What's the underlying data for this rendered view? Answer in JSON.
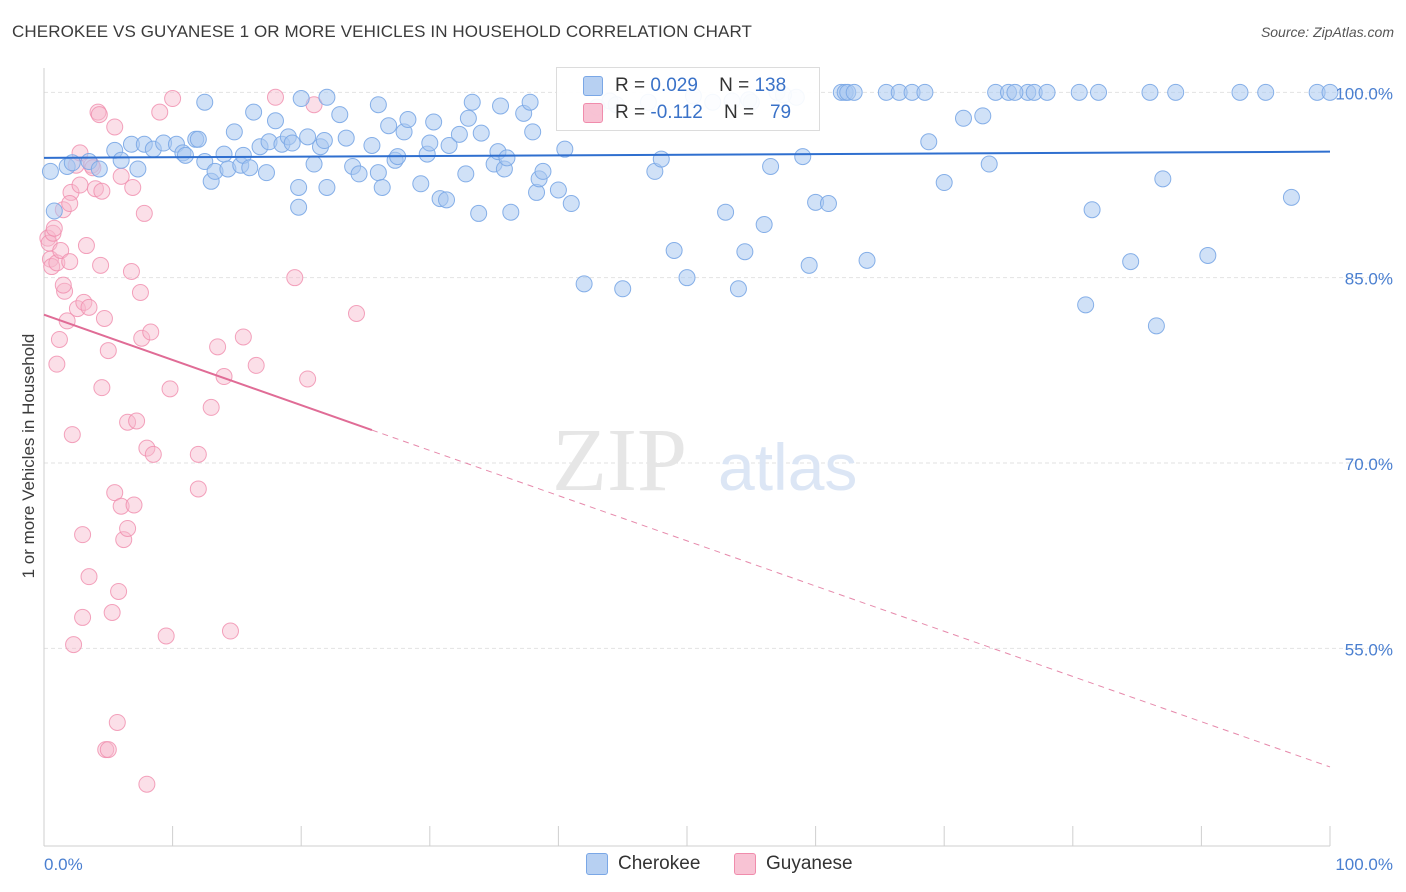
{
  "title": "CHEROKEE VS GUYANESE 1 OR MORE VEHICLES IN HOUSEHOLD CORRELATION CHART",
  "source": "Source: ZipAtlas.com",
  "watermark": {
    "zip": "ZIP",
    "atlas": "atlas"
  },
  "legend": {
    "rows": [
      {
        "r_label": "R =",
        "r_value": "0.029",
        "n_label": "N =",
        "n_value": "138",
        "color": "#aac8f0"
      },
      {
        "r_label": "R =",
        "r_value": "-0.112",
        "n_label": "N =",
        "n_value": "79",
        "color": "#f7b9cc"
      }
    ]
  },
  "bottom_legend": {
    "items": [
      {
        "label": "Cherokee",
        "color": "#aac8f0"
      },
      {
        "label": "Guyanese",
        "color": "#f7b9cc"
      }
    ]
  },
  "colors": {
    "blue_line": "#2f6fcf",
    "pink_line": "#e06c96",
    "blue_point": "#7aa7e6",
    "pink_point": "#f08cac",
    "tick_label": "#4a7fd0"
  },
  "chart_data": {
    "type": "scatter",
    "title": "CHEROKEE VS GUYANESE 1 OR MORE VEHICLES IN HOUSEHOLD CORRELATION CHART",
    "xlabel": "",
    "ylabel": "1 or more Vehicles in Household",
    "xlim": [
      0,
      100
    ],
    "ylim": [
      39,
      101
    ],
    "x_tick_labels": [
      "0.0%",
      "100.0%"
    ],
    "y_ticks": [
      55,
      70,
      85,
      100
    ],
    "y_tick_labels": [
      "55.0%",
      "70.0%",
      "85.0%",
      "100.0%"
    ],
    "grid": true,
    "legend_position": "top-center",
    "series": [
      {
        "name": "Cherokee",
        "color": "#7aa7e6",
        "trend": {
          "x": [
            0,
            100
          ],
          "y": [
            94.7,
            95.2
          ],
          "dashed_from": null
        },
        "points": [
          [
            0.5,
            93.6
          ],
          [
            0.8,
            90.4
          ],
          [
            1.8,
            94.0
          ],
          [
            2.2,
            94.3
          ],
          [
            3.5,
            94.4
          ],
          [
            4.3,
            93.8
          ],
          [
            5.5,
            95.3
          ],
          [
            6.0,
            94.5
          ],
          [
            6.8,
            95.8
          ],
          [
            7.3,
            93.8
          ],
          [
            7.8,
            95.8
          ],
          [
            8.5,
            95.4
          ],
          [
            9.3,
            95.9
          ],
          [
            10.3,
            95.8
          ],
          [
            10.8,
            95.1
          ],
          [
            11.0,
            94.9
          ],
          [
            11.8,
            96.2
          ],
          [
            12.0,
            96.2
          ],
          [
            12.5,
            94.4
          ],
          [
            13.0,
            92.8
          ],
          [
            13.3,
            93.6
          ],
          [
            14.0,
            95.0
          ],
          [
            14.3,
            93.8
          ],
          [
            14.8,
            96.8
          ],
          [
            15.3,
            94.1
          ],
          [
            15.5,
            94.9
          ],
          [
            16.0,
            93.9
          ],
          [
            16.3,
            98.4
          ],
          [
            16.8,
            95.6
          ],
          [
            17.3,
            93.5
          ],
          [
            17.5,
            96.0
          ],
          [
            18.0,
            97.7
          ],
          [
            18.5,
            95.8
          ],
          [
            19.0,
            96.4
          ],
          [
            19.3,
            95.9
          ],
          [
            19.8,
            92.3
          ],
          [
            19.8,
            90.7
          ],
          [
            20.5,
            96.4
          ],
          [
            21.0,
            94.2
          ],
          [
            21.5,
            95.6
          ],
          [
            21.8,
            96.1
          ],
          [
            22.0,
            92.3
          ],
          [
            23.0,
            98.2
          ],
          [
            23.5,
            96.3
          ],
          [
            24.0,
            94.0
          ],
          [
            24.5,
            93.4
          ],
          [
            25.5,
            95.7
          ],
          [
            26.0,
            93.5
          ],
          [
            26.3,
            92.3
          ],
          [
            26.8,
            97.3
          ],
          [
            27.3,
            94.5
          ],
          [
            27.5,
            94.8
          ],
          [
            28.0,
            96.8
          ],
          [
            28.3,
            97.8
          ],
          [
            29.3,
            92.6
          ],
          [
            29.8,
            95.0
          ],
          [
            30.0,
            95.9
          ],
          [
            30.8,
            91.4
          ],
          [
            31.3,
            91.3
          ],
          [
            31.5,
            95.7
          ],
          [
            32.3,
            96.6
          ],
          [
            32.8,
            93.4
          ],
          [
            33.0,
            97.9
          ],
          [
            33.3,
            99.2
          ],
          [
            33.8,
            90.2
          ],
          [
            34.0,
            96.7
          ],
          [
            35.0,
            94.2
          ],
          [
            35.3,
            95.2
          ],
          [
            35.8,
            93.8
          ],
          [
            36.0,
            94.7
          ],
          [
            36.3,
            90.3
          ],
          [
            37.3,
            98.3
          ],
          [
            37.8,
            99.2
          ],
          [
            38.0,
            96.8
          ],
          [
            38.3,
            91.9
          ],
          [
            38.5,
            93.0
          ],
          [
            38.8,
            93.6
          ],
          [
            40.0,
            92.1
          ],
          [
            40.5,
            95.4
          ],
          [
            41.0,
            91.0
          ],
          [
            42.0,
            84.5
          ],
          [
            44.0,
            99.3
          ],
          [
            45.0,
            84.1
          ],
          [
            47.0,
            99.2
          ],
          [
            47.5,
            93.6
          ],
          [
            48.0,
            94.6
          ],
          [
            49.0,
            87.2
          ],
          [
            50.0,
            85.0
          ],
          [
            52.0,
            99.2
          ],
          [
            53.0,
            90.3
          ],
          [
            53.5,
            99.3
          ],
          [
            54.0,
            84.1
          ],
          [
            54.5,
            87.1
          ],
          [
            55.0,
            99.2
          ],
          [
            56.0,
            89.3
          ],
          [
            56.5,
            94.0
          ],
          [
            57.0,
            100.0
          ],
          [
            59.0,
            94.8
          ],
          [
            59.5,
            86.0
          ],
          [
            60.0,
            91.1
          ],
          [
            61.0,
            91.0
          ],
          [
            62.0,
            100.0
          ],
          [
            62.3,
            100.0
          ],
          [
            62.5,
            100.0
          ],
          [
            63.0,
            100.0
          ],
          [
            64.0,
            86.4
          ],
          [
            65.5,
            100.0
          ],
          [
            66.5,
            100.0
          ],
          [
            67.5,
            100.0
          ],
          [
            68.5,
            100.0
          ],
          [
            68.8,
            96.0
          ],
          [
            70.0,
            92.7
          ],
          [
            71.5,
            97.9
          ],
          [
            73.0,
            98.1
          ],
          [
            73.5,
            94.2
          ],
          [
            74.0,
            100.0
          ],
          [
            76.5,
            100.0
          ],
          [
            77.0,
            100.0
          ],
          [
            78.0,
            100.0
          ],
          [
            80.5,
            100.0
          ],
          [
            75.0,
            100.0
          ],
          [
            75.5,
            100.0
          ],
          [
            81.0,
            82.8
          ],
          [
            81.5,
            90.5
          ],
          [
            82.0,
            100.0
          ],
          [
            84.5,
            86.3
          ],
          [
            86.0,
            100.0
          ],
          [
            86.5,
            81.1
          ],
          [
            87.0,
            93.0
          ],
          [
            88.0,
            100.0
          ],
          [
            93.0,
            100.0
          ],
          [
            95.0,
            100.0
          ],
          [
            97.0,
            91.5
          ],
          [
            99.0,
            100.0
          ],
          [
            100.0,
            100.0
          ],
          [
            90.5,
            86.8
          ],
          [
            20.0,
            99.5
          ],
          [
            26.0,
            99.0
          ],
          [
            58.5,
            99.6
          ],
          [
            43.0,
            98.8
          ],
          [
            12.5,
            99.2
          ],
          [
            22.0,
            99.6
          ],
          [
            30.3,
            97.6
          ],
          [
            35.5,
            98.9
          ],
          [
            44.5,
            99.0
          ],
          [
            50.5,
            99.7
          ],
          [
            54.8,
            99.4
          ],
          [
            57.5,
            99.8
          ]
        ]
      },
      {
        "name": "Guyanese",
        "color": "#f08cac",
        "trend": {
          "x": [
            0,
            100
          ],
          "y": [
            82.0,
            45.4
          ],
          "dashed_from": 25.5
        },
        "points": [
          [
            0.3,
            88.2
          ],
          [
            0.4,
            87.8
          ],
          [
            0.5,
            86.5
          ],
          [
            0.6,
            85.9
          ],
          [
            0.7,
            88.6
          ],
          [
            0.8,
            89.0
          ],
          [
            1.0,
            86.2
          ],
          [
            1.0,
            78.0
          ],
          [
            1.2,
            80.0
          ],
          [
            1.3,
            87.2
          ],
          [
            1.5,
            90.5
          ],
          [
            1.6,
            83.9
          ],
          [
            1.8,
            81.5
          ],
          [
            2.0,
            86.3
          ],
          [
            2.1,
            91.9
          ],
          [
            2.2,
            72.3
          ],
          [
            2.3,
            55.3
          ],
          [
            2.5,
            94.1
          ],
          [
            2.6,
            82.5
          ],
          [
            2.8,
            95.1
          ],
          [
            2.8,
            92.5
          ],
          [
            3.0,
            57.5
          ],
          [
            3.1,
            83.0
          ],
          [
            3.3,
            87.6
          ],
          [
            3.5,
            60.8
          ],
          [
            3.5,
            82.6
          ],
          [
            3.7,
            94.1
          ],
          [
            3.8,
            93.9
          ],
          [
            4.0,
            92.2
          ],
          [
            4.2,
            98.4
          ],
          [
            4.3,
            98.2
          ],
          [
            4.4,
            86.0
          ],
          [
            4.5,
            76.1
          ],
          [
            4.5,
            92.0
          ],
          [
            4.7,
            81.7
          ],
          [
            4.8,
            46.8
          ],
          [
            5.0,
            79.1
          ],
          [
            5.3,
            57.9
          ],
          [
            5.5,
            67.6
          ],
          [
            5.5,
            97.2
          ],
          [
            5.7,
            49.0
          ],
          [
            5.8,
            59.6
          ],
          [
            6.0,
            93.2
          ],
          [
            6.0,
            66.5
          ],
          [
            6.2,
            63.8
          ],
          [
            6.5,
            73.3
          ],
          [
            6.8,
            85.5
          ],
          [
            6.9,
            92.3
          ],
          [
            7.0,
            66.6
          ],
          [
            7.2,
            73.4
          ],
          [
            7.5,
            83.8
          ],
          [
            7.6,
            80.1
          ],
          [
            7.8,
            90.2
          ],
          [
            8.0,
            71.2
          ],
          [
            8.3,
            80.6
          ],
          [
            8.5,
            70.7
          ],
          [
            9.0,
            98.4
          ],
          [
            9.5,
            56.0
          ],
          [
            9.8,
            76.0
          ],
          [
            10.0,
            99.5
          ],
          [
            12.0,
            67.9
          ],
          [
            12.0,
            70.7
          ],
          [
            13.0,
            74.5
          ],
          [
            13.5,
            79.4
          ],
          [
            14.0,
            77.0
          ],
          [
            14.5,
            56.4
          ],
          [
            15.5,
            80.2
          ],
          [
            16.5,
            77.9
          ],
          [
            18.0,
            99.6
          ],
          [
            19.5,
            85.0
          ],
          [
            20.5,
            76.8
          ],
          [
            21.0,
            99.0
          ],
          [
            24.3,
            82.1
          ],
          [
            8.0,
            44.0
          ],
          [
            5.0,
            46.8
          ],
          [
            3.0,
            64.2
          ],
          [
            6.5,
            64.7
          ],
          [
            1.5,
            84.4
          ],
          [
            2.0,
            91.0
          ]
        ]
      }
    ]
  }
}
